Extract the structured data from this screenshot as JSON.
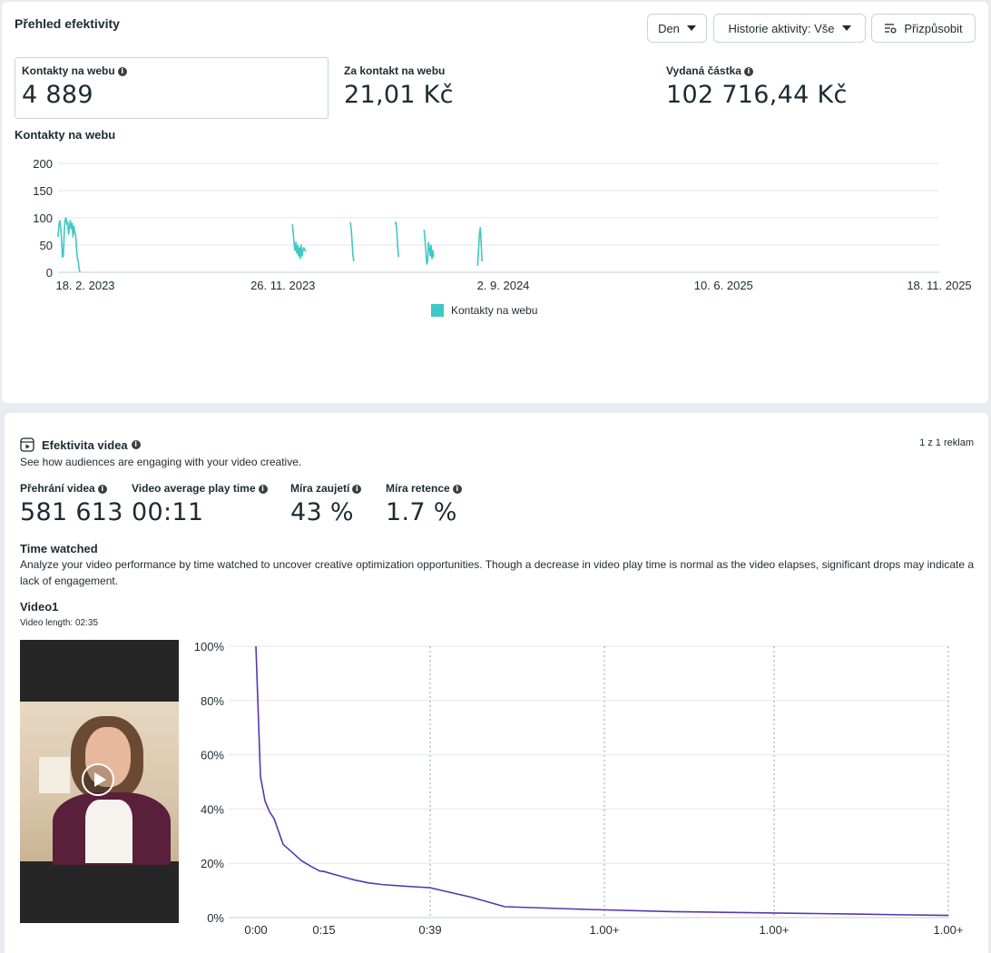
{
  "overview": {
    "title": "Přehled efektivity",
    "buttons": {
      "period": "Den",
      "history": "Historie aktivity: Vše",
      "customize": "Přizpůsobit"
    },
    "kpis": [
      {
        "label": "Kontakty na webu",
        "value": "4 889"
      },
      {
        "label": "Za kontakt na webu",
        "value": "21,01 Kč"
      },
      {
        "label": "Vydaná částka",
        "value": "102 716,44 Kč"
      }
    ],
    "chart_title": "Kontakty na webu",
    "legend": "Kontakty na webu"
  },
  "video": {
    "title": "Efektivita videa",
    "subtitle": "See how audiences are engaging with your video creative.",
    "counter": "1 z 1 reklam",
    "metrics": [
      {
        "label": "Přehrání videa",
        "value": "581 613"
      },
      {
        "label": "Video average play time",
        "value": "00:11"
      },
      {
        "label": "Míra zaujetí",
        "value": "43 %"
      },
      {
        "label": "Míra retence",
        "value": "1.7 %"
      }
    ],
    "time_watched_title": "Time watched",
    "time_watched_desc": "Analyze your video performance by time watched to uncover creative optimization opportunities. Though a decrease in video play time is normal as the video elapses, significant drops may indicate a lack of engagement.",
    "video_name": "Video1",
    "video_length": "Video length: 02:35"
  },
  "colors": {
    "accent_teal": "#3ec9c4",
    "retention_line": "#5a35b0"
  },
  "chart_data": [
    {
      "type": "line",
      "title": "Kontakty na webu",
      "x_tick_labels": [
        "18. 2. 2023",
        "26. 11. 2023",
        "2. 9. 2024",
        "10. 6. 2025",
        "18. 11. 2025"
      ],
      "y_ticks": [
        0,
        50,
        100,
        150,
        200
      ],
      "ylim": [
        0,
        200
      ],
      "xlim": [
        "2023-02-18",
        "2025-11-18"
      ],
      "grid": true,
      "legend_position": "bottom-center",
      "series": [
        {
          "name": "Kontakty na webu",
          "color": "#3ec9c4",
          "segments": [
            [
              [
                "2023-02-18",
                65
              ],
              [
                "2023-02-19",
                88
              ],
              [
                "2023-02-20",
                95
              ],
              [
                "2023-02-21",
                82
              ],
              [
                "2023-02-22",
                60
              ],
              [
                "2023-02-23",
                28
              ],
              [
                "2023-02-24",
                30
              ],
              [
                "2023-02-25",
                72
              ],
              [
                "2023-02-26",
                96
              ],
              [
                "2023-02-27",
                100
              ],
              [
                "2023-02-28",
                88
              ],
              [
                "2023-03-01",
                92
              ],
              [
                "2023-03-02",
                70
              ],
              [
                "2023-03-03",
                85
              ],
              [
                "2023-03-04",
                95
              ],
              [
                "2023-03-05",
                80
              ],
              [
                "2023-03-06",
                90
              ],
              [
                "2023-03-07",
                65
              ],
              [
                "2023-03-08",
                85
              ],
              [
                "2023-03-09",
                72
              ],
              [
                "2023-03-10",
                70
              ],
              [
                "2023-03-11",
                45
              ],
              [
                "2023-03-12",
                25
              ],
              [
                "2023-03-13",
                20
              ],
              [
                "2023-03-14",
                5
              ],
              [
                "2023-03-15",
                0
              ]
            ],
            [
              [
                "2023-11-12",
                88
              ],
              [
                "2023-11-13",
                70
              ],
              [
                "2023-11-14",
                50
              ],
              [
                "2023-11-15",
                40
              ],
              [
                "2023-11-16",
                55
              ],
              [
                "2023-11-17",
                35
              ],
              [
                "2023-11-18",
                50
              ],
              [
                "2023-11-19",
                30
              ],
              [
                "2023-11-20",
                45
              ],
              [
                "2023-11-21",
                25
              ],
              [
                "2023-11-22",
                50
              ],
              [
                "2023-11-23",
                30
              ],
              [
                "2023-11-24",
                40
              ],
              [
                "2023-11-25",
                45
              ],
              [
                "2023-11-26",
                42
              ],
              [
                "2023-11-27",
                38
              ]
            ],
            [
              [
                "2024-01-17",
                92
              ],
              [
                "2024-01-18",
                80
              ],
              [
                "2024-01-19",
                55
              ],
              [
                "2024-01-20",
                30
              ],
              [
                "2024-01-21",
                20
              ]
            ],
            [
              [
                "2024-03-08",
                88
              ],
              [
                "2024-03-09",
                92
              ],
              [
                "2024-03-10",
                75
              ],
              [
                "2024-03-11",
                45
              ],
              [
                "2024-03-12",
                28
              ]
            ],
            [
              [
                "2024-04-10",
                78
              ],
              [
                "2024-04-11",
                60
              ],
              [
                "2024-04-12",
                40
              ],
              [
                "2024-04-13",
                15
              ],
              [
                "2024-04-14",
                20
              ],
              [
                "2024-04-15",
                55
              ],
              [
                "2024-04-16",
                45
              ],
              [
                "2024-04-17",
                30
              ],
              [
                "2024-04-18",
                50
              ],
              [
                "2024-04-19",
                25
              ],
              [
                "2024-04-20",
                40
              ],
              [
                "2024-04-21",
                28
              ]
            ],
            [
              [
                "2024-06-10",
                12
              ],
              [
                "2024-06-11",
                40
              ],
              [
                "2024-06-12",
                68
              ],
              [
                "2024-06-13",
                82
              ],
              [
                "2024-06-14",
                55
              ],
              [
                "2024-06-15",
                20
              ]
            ]
          ]
        }
      ]
    },
    {
      "type": "line",
      "title": "",
      "x_tick_labels": [
        "0:00",
        "0:15",
        "0:39",
        "1.00+",
        "1.00+",
        "1.00+"
      ],
      "y_tick_labels": [
        "0%",
        "20%",
        "40%",
        "60%",
        "80%",
        "100%"
      ],
      "ylim": [
        0,
        100
      ],
      "grid": true,
      "series": [
        {
          "name": "",
          "color": "#5a35b0",
          "points": [
            [
              0,
              100
            ],
            [
              1,
              52
            ],
            [
              2,
              43
            ],
            [
              3,
              39
            ],
            [
              4,
              36.5
            ],
            [
              6,
              27
            ],
            [
              8,
              24
            ],
            [
              10,
              21
            ],
            [
              12,
              19
            ],
            [
              14,
              17.2
            ],
            [
              15,
              17
            ],
            [
              18,
              15.6
            ],
            [
              22,
              13.8
            ],
            [
              25,
              12.8
            ],
            [
              28,
              12.2
            ],
            [
              33,
              11.6
            ],
            [
              37,
              11.2
            ],
            [
              39,
              11
            ],
            [
              44,
              7.5
            ],
            [
              48,
              4
            ],
            [
              58,
              3
            ],
            [
              72,
              2.2
            ],
            [
              90,
              1.7
            ],
            [
              105,
              1.5
            ],
            [
              120,
              1.3
            ],
            [
              140,
              1
            ],
            [
              155,
              0.8
            ]
          ]
        }
      ]
    }
  ]
}
